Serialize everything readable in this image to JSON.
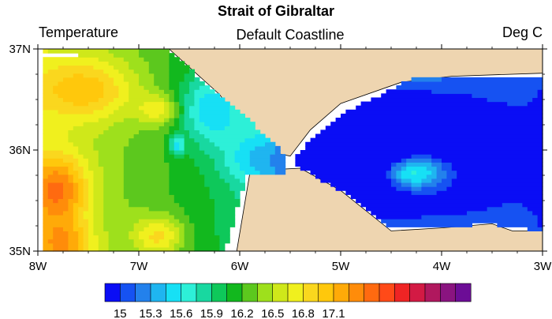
{
  "chart_data": {
    "type": "heatmap",
    "title": "Strait of Gibraltar",
    "left_label": "Temperature",
    "center_label": "Default Coastline",
    "right_label": "Deg C",
    "x_ticks": [
      "8W",
      "7W",
      "6W",
      "5W",
      "4W",
      "3W"
    ],
    "x_tick_values": [
      -8,
      -7,
      -6,
      -5,
      -4,
      -3
    ],
    "y_ticks": [
      "37N",
      "36N",
      "35N"
    ],
    "y_tick_values": [
      37,
      36,
      35
    ],
    "xlim": [
      -8,
      -3
    ],
    "ylim": [
      35,
      37
    ],
    "colorbar": {
      "min": 14.85,
      "step": 0.15,
      "colors": [
        "#0a0df5",
        "#1652f2",
        "#2381ec",
        "#1fb5f0",
        "#17e0f5",
        "#2df0d8",
        "#18d8a0",
        "#0ec85a",
        "#12b81e",
        "#5cc81e",
        "#9ee01c",
        "#cfe81a",
        "#f0f01e",
        "#fad71e",
        "#ffc80c",
        "#ffaa08",
        "#ff8c0a",
        "#ff6a10",
        "#ff4a18",
        "#ef2424",
        "#d31a44",
        "#b0185e",
        "#8a1480",
        "#6c0d96"
      ],
      "tick_values": [
        15,
        15.3,
        15.6,
        15.9,
        16.2,
        16.5,
        16.8,
        17.1
      ],
      "tick_labels": [
        "15",
        "15.3",
        "15.6",
        "15.9",
        "16.2",
        "16.5",
        "16.8",
        "17.1"
      ]
    },
    "land_color": "#eed5b0",
    "background_color": "#ffffff",
    "field_data": {
      "base": 16.3,
      "trend": [
        [
          -7.9,
          35.45,
          -0.25
        ],
        [
          -7.0,
          35.35,
          0.3
        ]
      ],
      "features": [
        [
          -7.8,
          35.6,
          0.9,
          0.3,
          0.35
        ],
        [
          -7.5,
          36.6,
          0.6,
          0.5,
          0.3
        ],
        [
          -7.75,
          35.05,
          0.7,
          0.3,
          0.25
        ],
        [
          -6.8,
          35.15,
          0.6,
          0.25,
          0.2
        ],
        [
          -6.8,
          36.4,
          0.5,
          0.2,
          0.15
        ],
        [
          -6.62,
          36.05,
          -0.6,
          0.07,
          0.1
        ],
        [
          -6.3,
          36.4,
          -0.6,
          0.3,
          0.35
        ],
        [
          -5.9,
          35.9,
          -0.35,
          0.3,
          0.25
        ],
        [
          -5.0,
          35.9,
          -1.3,
          0.6,
          0.6
        ],
        [
          -4.2,
          35.9,
          -0.6,
          0.8,
          0.7
        ],
        [
          -4.3,
          35.78,
          1.05,
          0.35,
          0.18
        ],
        [
          -4.6,
          36.4,
          -0.35,
          0.8,
          0.2
        ]
      ],
      "mask": {
        "west_boundary": [
          -8,
          36.98
        ],
        "top_boundary": [
          [
            -7.6,
            36.98
          ],
          [
            -6.7,
            36.98
          ]
        ],
        "right_boundary_west": [
          [
            -6.7,
            36.98
          ],
          [
            -6.2,
            36.3
          ],
          [
            -5.9,
            36.0
          ],
          [
            -6.0,
            35.0
          ]
        ],
        "east_region": [
          [
            -5.5,
            35.95
          ],
          [
            -3.0,
            35.95
          ]
        ],
        "east_top": [
          [
            -5.2,
            36.7
          ],
          [
            -3.0,
            36.75
          ]
        ],
        "east_bottom": [
          [
            -4.5,
            35.15
          ],
          [
            -3.0,
            35.2
          ]
        ]
      }
    }
  }
}
